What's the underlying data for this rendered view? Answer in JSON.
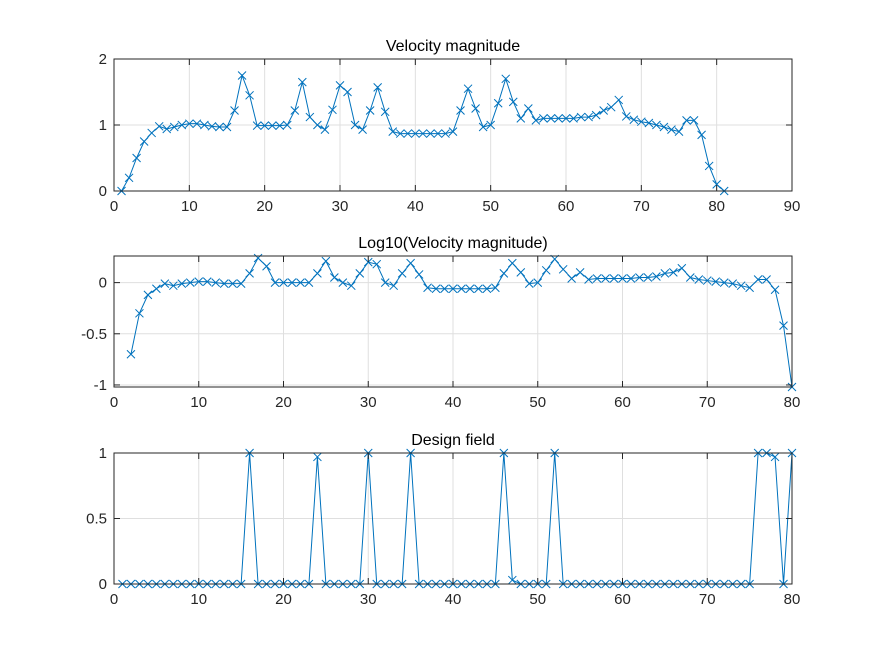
{
  "colors": {
    "series": "#0072BD",
    "grid": "#DFDFDF",
    "axes": "#262626",
    "background": "#FFFFFF"
  },
  "chart_data": [
    {
      "type": "line",
      "title": "Velocity magnitude",
      "xlabel": "",
      "ylabel": "",
      "xlim": [
        0,
        90
      ],
      "ylim": [
        0,
        2
      ],
      "xticks": [
        0,
        10,
        20,
        30,
        40,
        50,
        60,
        70,
        80,
        90
      ],
      "yticks": [
        0,
        1,
        2
      ],
      "ytick_labels": [
        "0",
        "1",
        "2"
      ],
      "grid": true,
      "marker": "x",
      "series": [
        {
          "x": [
            1,
            2,
            3,
            4,
            5,
            6,
            7,
            8,
            9,
            10,
            11,
            12,
            13,
            14,
            15,
            16,
            17,
            18,
            19,
            20,
            21,
            22,
            23,
            24,
            25,
            26,
            27,
            28,
            29,
            30,
            31,
            32,
            33,
            34,
            35,
            36,
            37,
            38,
            39,
            40,
            41,
            42,
            43,
            44,
            45,
            46,
            47,
            48,
            49,
            50,
            51,
            52,
            53,
            54,
            55,
            56,
            57,
            58,
            59,
            60,
            61,
            62,
            63,
            64,
            65,
            66,
            67,
            68,
            69,
            70,
            71,
            72,
            73,
            74,
            75,
            76,
            77,
            78,
            79,
            80,
            81
          ],
          "values": [
            0.0,
            0.2,
            0.5,
            0.75,
            0.88,
            0.98,
            0.94,
            0.97,
            1.0,
            1.02,
            1.02,
            1.0,
            0.98,
            0.97,
            0.97,
            1.22,
            1.75,
            1.45,
            0.99,
            0.99,
            0.99,
            0.99,
            1.0,
            1.22,
            1.65,
            1.12,
            1.0,
            0.93,
            1.23,
            1.6,
            1.5,
            1.0,
            0.93,
            1.22,
            1.57,
            1.2,
            0.9,
            0.87,
            0.87,
            0.87,
            0.87,
            0.87,
            0.87,
            0.87,
            0.9,
            1.22,
            1.55,
            1.25,
            0.97,
            1.0,
            1.33,
            1.7,
            1.35,
            1.1,
            1.25,
            1.07,
            1.1,
            1.1,
            1.1,
            1.1,
            1.1,
            1.12,
            1.12,
            1.15,
            1.22,
            1.27,
            1.38,
            1.13,
            1.08,
            1.05,
            1.03,
            1.0,
            0.97,
            0.93,
            0.9,
            1.07,
            1.07,
            0.85,
            0.38,
            0.1,
            0.0
          ]
        }
      ]
    },
    {
      "type": "line",
      "title": "Log10(Velocity magnitude)",
      "xlabel": "",
      "ylabel": "",
      "xlim": [
        0,
        80
      ],
      "ylim": [
        -1.02,
        0.26
      ],
      "xticks": [
        0,
        10,
        20,
        30,
        40,
        50,
        60,
        70,
        80
      ],
      "yticks": [
        0,
        -0.5,
        -1
      ],
      "ytick_labels": [
        "0",
        "-0.5",
        "-1"
      ],
      "grid": true,
      "marker": "x",
      "series": [
        {
          "x": [
            2,
            3,
            4,
            5,
            6,
            7,
            8,
            9,
            10,
            11,
            12,
            13,
            14,
            15,
            16,
            17,
            18,
            19,
            20,
            21,
            22,
            23,
            24,
            25,
            26,
            27,
            28,
            29,
            30,
            31,
            32,
            33,
            34,
            35,
            36,
            37,
            38,
            39,
            40,
            41,
            42,
            43,
            44,
            45,
            46,
            47,
            48,
            49,
            50,
            51,
            52,
            53,
            54,
            55,
            56,
            57,
            58,
            59,
            60,
            61,
            62,
            63,
            64,
            65,
            66,
            67,
            68,
            69,
            70,
            71,
            72,
            73,
            74,
            75,
            76,
            77,
            78,
            79,
            80
          ],
          "values": [
            -0.7,
            -0.3,
            -0.12,
            -0.06,
            -0.01,
            -0.03,
            -0.01,
            0.0,
            0.01,
            0.01,
            0.0,
            -0.01,
            -0.01,
            -0.01,
            0.09,
            0.24,
            0.16,
            0.0,
            0.0,
            0.0,
            0.0,
            0.0,
            0.09,
            0.21,
            0.05,
            0.0,
            -0.03,
            0.09,
            0.2,
            0.18,
            0.0,
            -0.03,
            0.09,
            0.19,
            0.08,
            -0.05,
            -0.06,
            -0.06,
            -0.06,
            -0.06,
            -0.06,
            -0.06,
            -0.06,
            -0.05,
            0.09,
            0.19,
            0.1,
            -0.01,
            0.0,
            0.12,
            0.23,
            0.13,
            0.04,
            0.1,
            0.03,
            0.04,
            0.04,
            0.04,
            0.04,
            0.04,
            0.05,
            0.05,
            0.06,
            0.09,
            0.1,
            0.14,
            0.05,
            0.03,
            0.02,
            0.01,
            0.0,
            -0.01,
            -0.03,
            -0.05,
            0.03,
            0.03,
            -0.07,
            -0.42,
            -1.02
          ]
        }
      ]
    },
    {
      "type": "line",
      "title": "Design field",
      "xlabel": "",
      "ylabel": "",
      "xlim": [
        0,
        80
      ],
      "ylim": [
        0,
        1
      ],
      "xticks": [
        0,
        10,
        20,
        30,
        40,
        50,
        60,
        70,
        80
      ],
      "yticks": [
        0,
        0.5,
        1
      ],
      "ytick_labels": [
        "0",
        "0.5",
        "1"
      ],
      "grid": true,
      "marker": "x",
      "series": [
        {
          "x": [
            1,
            2,
            3,
            4,
            5,
            6,
            7,
            8,
            9,
            10,
            11,
            12,
            13,
            14,
            15,
            16,
            17,
            18,
            19,
            20,
            21,
            22,
            23,
            24,
            25,
            26,
            27,
            28,
            29,
            30,
            31,
            32,
            33,
            34,
            35,
            36,
            37,
            38,
            39,
            40,
            41,
            42,
            43,
            44,
            45,
            46,
            47,
            48,
            49,
            50,
            51,
            52,
            53,
            54,
            55,
            56,
            57,
            58,
            59,
            60,
            61,
            62,
            63,
            64,
            65,
            66,
            67,
            68,
            69,
            70,
            71,
            72,
            73,
            74,
            75,
            76,
            77,
            78,
            79,
            80
          ],
          "values": [
            0,
            0,
            0,
            0,
            0,
            0,
            0,
            0,
            0,
            0,
            0,
            0,
            0,
            0,
            0,
            1,
            0,
            0,
            0,
            0,
            0,
            0,
            0,
            0.97,
            0,
            0,
            0,
            0,
            0,
            1,
            0,
            0,
            0,
            0,
            1,
            0,
            0,
            0,
            0,
            0,
            0,
            0,
            0,
            0,
            0,
            1,
            0.03,
            0,
            0,
            0,
            0,
            1,
            0,
            0,
            0,
            0,
            0,
            0,
            0,
            0,
            0,
            0,
            0,
            0,
            0,
            0,
            0,
            0,
            0,
            0,
            0,
            0,
            0,
            0,
            0,
            1,
            1,
            0.97,
            0,
            1
          ]
        }
      ]
    }
  ]
}
